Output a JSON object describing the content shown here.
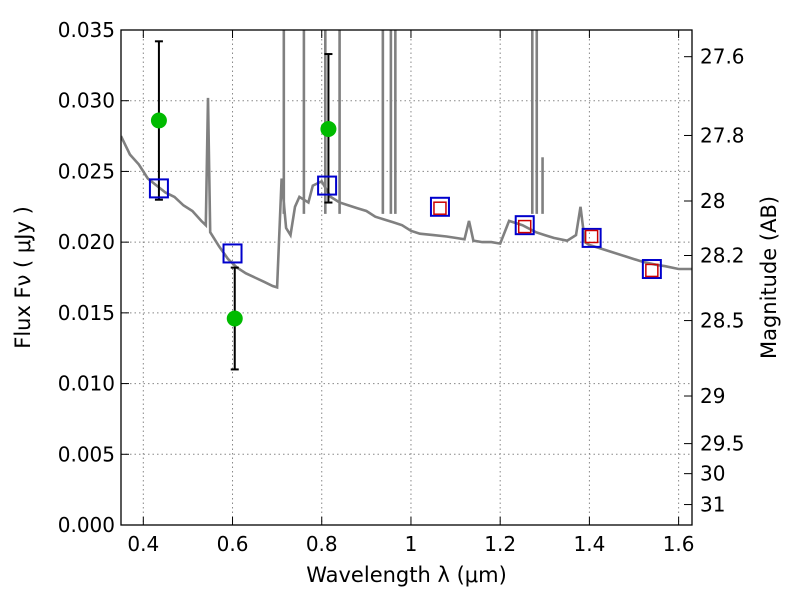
{
  "chart_data": {
    "type": "scatter",
    "title": "",
    "xlabel": "Wavelength  λ (μm)",
    "ylabel": "Flux  Fν  ( μJy )",
    "ylabel_right": "Magnitude (AB)",
    "xlim": [
      0.35,
      1.63
    ],
    "ylim": [
      0.0,
      0.035
    ],
    "grid": true,
    "x_ticks": [
      0.4,
      0.6,
      0.8,
      1.0,
      1.2,
      1.4,
      1.6
    ],
    "x_tick_labels": [
      "0.4",
      "0.6",
      "0.8",
      "1",
      "1.2",
      "1.4",
      "1.6"
    ],
    "y_ticks": [
      0.0,
      0.005,
      0.01,
      0.015,
      0.02,
      0.025,
      0.03,
      0.035
    ],
    "y_tick_labels": [
      "0.000",
      "0.005",
      "0.010",
      "0.015",
      "0.020",
      "0.025",
      "0.030",
      "0.035"
    ],
    "right_ticks": [
      {
        "label": "27.6",
        "mag": 27.6
      },
      {
        "label": "27.8",
        "mag": 27.8
      },
      {
        "label": "28",
        "mag": 28.0
      },
      {
        "label": "28.2",
        "mag": 28.2
      },
      {
        "label": "28.5",
        "mag": 28.5
      },
      {
        "label": "29",
        "mag": 29.0
      },
      {
        "label": "29.5",
        "mag": 29.5
      },
      {
        "label": "30",
        "mag": 30.0
      },
      {
        "label": "31",
        "mag": 31.0
      }
    ],
    "colors": {
      "spectrum": "#808080",
      "observed": "#00bb00",
      "model_box": "#0000cc",
      "model_inner": "#cc0000",
      "errorbar": "#000000",
      "grid": "#888888"
    },
    "series": [
      {
        "kind": "spectrum",
        "x": [
          0.35,
          0.37,
          0.39,
          0.41,
          0.43,
          0.45,
          0.47,
          0.49,
          0.51,
          0.53,
          0.54,
          0.545,
          0.55,
          0.57,
          0.59,
          0.61,
          0.63,
          0.65,
          0.67,
          0.69,
          0.7,
          0.71,
          0.72,
          0.73,
          0.74,
          0.75,
          0.76,
          0.77,
          0.78,
          0.8,
          0.82,
          0.84,
          0.86,
          0.88,
          0.9,
          0.92,
          0.94,
          0.96,
          0.98,
          1.0,
          1.02,
          1.05,
          1.08,
          1.1,
          1.12,
          1.13,
          1.14,
          1.16,
          1.18,
          1.2,
          1.22,
          1.25,
          1.28,
          1.3,
          1.32,
          1.35,
          1.37,
          1.38,
          1.39,
          1.4,
          1.42,
          1.45,
          1.48,
          1.5,
          1.52,
          1.55,
          1.57,
          1.6,
          1.63
        ],
        "y": [
          0.0275,
          0.0262,
          0.0255,
          0.0245,
          0.024,
          0.0235,
          0.0232,
          0.0226,
          0.0222,
          0.0215,
          0.0212,
          0.0302,
          0.0207,
          0.0197,
          0.0188,
          0.0182,
          0.0178,
          0.0175,
          0.0172,
          0.0169,
          0.0168,
          0.0245,
          0.021,
          0.0205,
          0.0225,
          0.0232,
          0.023,
          0.0228,
          0.024,
          0.0243,
          0.0232,
          0.0228,
          0.0226,
          0.0224,
          0.0222,
          0.0218,
          0.0216,
          0.0214,
          0.0212,
          0.0208,
          0.0206,
          0.0205,
          0.0204,
          0.0203,
          0.0202,
          0.0215,
          0.0201,
          0.02,
          0.02,
          0.0199,
          0.0215,
          0.0212,
          0.0207,
          0.0205,
          0.0203,
          0.0201,
          0.0205,
          0.0225,
          0.02,
          0.0198,
          0.0196,
          0.0193,
          0.019,
          0.0188,
          0.0186,
          0.0184,
          0.0183,
          0.0181,
          0.0181
        ]
      },
      {
        "kind": "spectrum-lines",
        "x": [
          0.715,
          0.76,
          0.808,
          0.84,
          0.937,
          0.955,
          0.965,
          1.272,
          1.282,
          1.295
        ],
        "y": [
          0.035,
          0.035,
          0.035,
          0.035,
          0.035,
          0.035,
          0.035,
          0.035,
          0.035,
          0.026
        ]
      },
      {
        "kind": "observed",
        "x": [
          0.435,
          0.605,
          0.815
        ],
        "y": [
          0.0286,
          0.0146,
          0.028
        ],
        "err_low": [
          0.023,
          0.011,
          0.0228
        ],
        "err_high": [
          0.0342,
          0.0182,
          0.0333
        ]
      },
      {
        "kind": "model-box",
        "x": [
          0.435,
          0.6,
          0.812,
          1.065,
          1.255,
          1.405,
          1.54
        ],
        "y": [
          0.0238,
          0.0192,
          0.024,
          0.0225,
          0.0212,
          0.0203,
          0.0181
        ]
      },
      {
        "kind": "model-inner",
        "x": [
          1.065,
          1.255,
          1.405,
          1.54
        ],
        "y": [
          0.0224,
          0.0211,
          0.0204,
          0.018
        ]
      }
    ]
  }
}
